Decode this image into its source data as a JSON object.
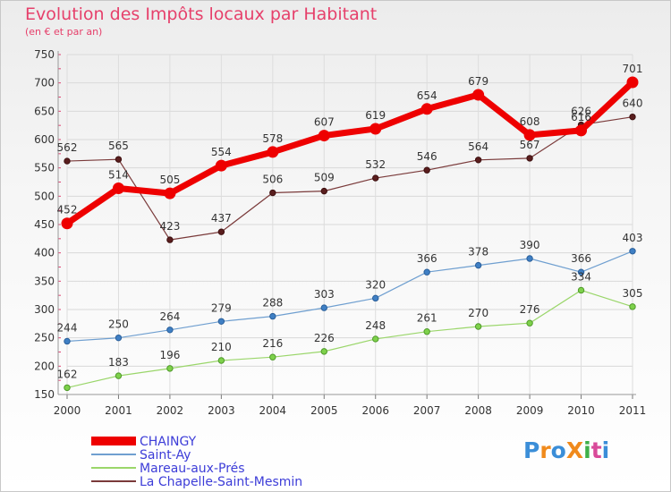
{
  "title": "Evolution des Impôts locaux par Habitant",
  "subtitle": "(en € et par an)",
  "logo_text": "ProXiti",
  "chart_data": {
    "type": "line",
    "title": "Evolution des Impôts locaux par Habitant",
    "subtitle": "(en € et par an)",
    "xlabel": "",
    "ylabel": "",
    "x": [
      "2000",
      "2001",
      "2002",
      "2003",
      "2004",
      "2005",
      "2006",
      "2007",
      "2008",
      "2009",
      "2010",
      "2011"
    ],
    "ylim": [
      150,
      750
    ],
    "yticks": [
      150,
      200,
      250,
      300,
      350,
      400,
      450,
      500,
      550,
      600,
      650,
      700,
      750
    ],
    "grid": true,
    "legend_position": "bottom-left",
    "series": [
      {
        "name": "CHAINGY",
        "color": "#ee0000",
        "values": [
          452,
          514,
          505,
          554,
          578,
          607,
          619,
          654,
          679,
          608,
          616,
          701
        ]
      },
      {
        "name": "Saint-Ay",
        "color": "#6f9fd0",
        "values": [
          244,
          250,
          264,
          279,
          288,
          303,
          320,
          366,
          378,
          390,
          366,
          403
        ]
      },
      {
        "name": "Mareau-aux-Prés",
        "color": "#9ad66a",
        "values": [
          162,
          183,
          196,
          210,
          216,
          226,
          248,
          261,
          270,
          276,
          334,
          305
        ]
      },
      {
        "name": "La Chapelle-Saint-Mesmin",
        "color": "#7a3a3a",
        "values": [
          562,
          565,
          423,
          437,
          506,
          509,
          532,
          546,
          564,
          567,
          626,
          640
        ]
      }
    ],
    "value_labels": [
      [
        "452",
        "514",
        "505",
        "554",
        "578",
        "607",
        "619",
        "654",
        "679",
        "608",
        "616",
        "701"
      ],
      [
        "244",
        "250",
        "264",
        "279",
        "288",
        "303",
        "320",
        "366",
        "378",
        "390",
        "366",
        "403"
      ],
      [
        "162",
        "183",
        "196",
        "210",
        "216",
        "226",
        "248",
        "261",
        "270",
        "276",
        "334",
        "305"
      ],
      [
        "562",
        "565",
        "423",
        "437",
        "506",
        "509",
        "532",
        "546",
        "564",
        "567",
        "626",
        "640"
      ]
    ]
  }
}
